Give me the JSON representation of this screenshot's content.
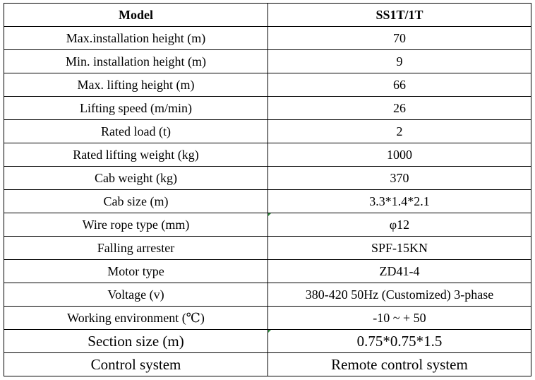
{
  "table": {
    "header": {
      "param": "Model",
      "value": "SS1T/1T"
    },
    "rows": [
      {
        "param": "Max.installation height  (m)",
        "value": "70"
      },
      {
        "param": "Min. installation height (m)",
        "value": "9"
      },
      {
        "param": "Max. lifting height (m)",
        "value": "66"
      },
      {
        "param": "Lifting speed (m/min)",
        "value": "26"
      },
      {
        "param": "Rated load (t)",
        "value": "2"
      },
      {
        "param": "Rated lifting weight (kg)",
        "value": "1000"
      },
      {
        "param": "Cab weight (kg)",
        "value": "370"
      },
      {
        "param": "Cab size (m)",
        "value": "3.3*1.4*2.1"
      },
      {
        "param": "Wire rope type (mm)",
        "value": "φ12"
      },
      {
        "param": "Falling arrester",
        "value": "SPF-15KN"
      },
      {
        "param": "Motor type",
        "value": "ZD41-4"
      },
      {
        "param": "Voltage (v)",
        "value": "380-420 50Hz (Customized) 3-phase"
      },
      {
        "param": "Working environment (℃)",
        "value": "-10 ~ + 50"
      },
      {
        "param": "Section size (m)",
        "value": "0.75*0.75*1.5"
      },
      {
        "param": "Control system",
        "value": "Remote control system"
      }
    ]
  },
  "colors": {
    "border": "#000000",
    "text": "#000000",
    "background": "#ffffff",
    "cell_marker": "#2e8b3d"
  }
}
